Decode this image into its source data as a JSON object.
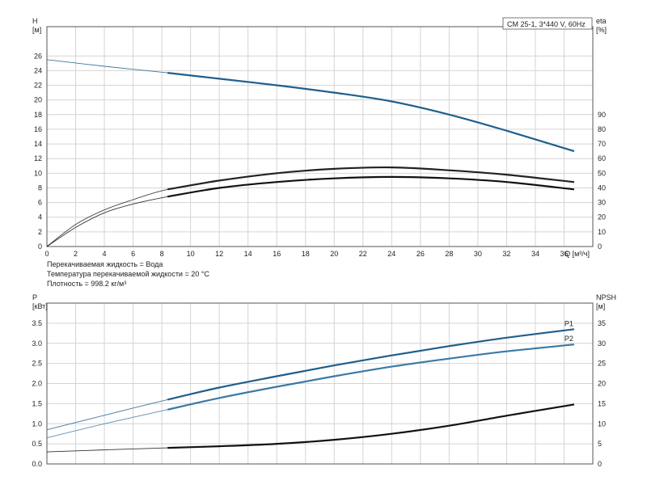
{
  "chart_data": [
    {
      "type": "line",
      "legend_title": "CM 25-1, 3*440 V, 60Hz",
      "x_axis": {
        "label": "Q [м³/ч]",
        "range": [
          0,
          38
        ],
        "ticks": [
          0,
          2,
          4,
          6,
          8,
          10,
          12,
          14,
          16,
          18,
          20,
          22,
          24,
          26,
          28,
          30,
          32,
          34,
          36
        ]
      },
      "y_left": {
        "label_line1": "H",
        "label_line2": "[м]",
        "range": [
          0,
          30
        ],
        "ticks": [
          0,
          2,
          4,
          6,
          8,
          10,
          12,
          14,
          16,
          18,
          20,
          22,
          24,
          26
        ]
      },
      "y_right": {
        "label_line1": "eta",
        "label_line2": "[%]",
        "range": [
          0,
          150
        ],
        "ticks": [
          0,
          10,
          20,
          30,
          40,
          50,
          60,
          70,
          80,
          90
        ]
      },
      "grid": true,
      "series": [
        {
          "axis": "left",
          "color": "#1f5f8b",
          "x": [
            0,
            4,
            8.4,
            12,
            16,
            20,
            24,
            28,
            32,
            36.7
          ],
          "y": [
            25.5,
            24.6,
            23.7,
            22.9,
            22.0,
            21.0,
            19.8,
            18.0,
            15.8,
            13.0
          ]
        },
        {
          "axis": "right",
          "color": "#222222",
          "x": [
            0,
            2,
            4,
            6,
            8.4,
            12,
            16,
            20,
            24,
            28,
            32,
            36.7
          ],
          "y": [
            0,
            15,
            25,
            32,
            39,
            45,
            50,
            53,
            54,
            52,
            49,
            44
          ]
        },
        {
          "axis": "right",
          "color": "#111111",
          "x": [
            0,
            2,
            4,
            6,
            8.4,
            12,
            16,
            20,
            24,
            28,
            32,
            36.7
          ],
          "y": [
            0,
            13,
            23,
            29,
            34,
            40,
            44,
            46.5,
            47.5,
            46.5,
            44,
            39
          ]
        }
      ]
    },
    {
      "type": "line",
      "x_axis": {
        "range": [
          0,
          38
        ],
        "ticks": []
      },
      "y_left": {
        "label_line1": "P",
        "label_line2": "[кВт]",
        "range": [
          0,
          4.0
        ],
        "ticks": [
          "0.0",
          "0.5",
          "1.0",
          "1.5",
          "2.0",
          "2.5",
          "3.0",
          "3.5"
        ]
      },
      "y_right": {
        "label_line1": "NPSH",
        "label_line2": "[м]",
        "range": [
          0,
          40
        ],
        "ticks": [
          0,
          5,
          10,
          15,
          20,
          25,
          30,
          35
        ]
      },
      "grid": true,
      "series": [
        {
          "name": "P1",
          "axis": "left",
          "color": "#1f5f8b",
          "x": [
            0,
            4,
            8.4,
            12,
            16,
            20,
            24,
            28,
            32,
            36.7
          ],
          "y": [
            0.85,
            1.21,
            1.6,
            1.9,
            2.18,
            2.45,
            2.7,
            2.93,
            3.14,
            3.35
          ]
        },
        {
          "name": "P2",
          "axis": "left",
          "color": "#3a7aa6",
          "x": [
            0,
            4,
            8.4,
            12,
            16,
            20,
            24,
            28,
            32,
            36.7
          ],
          "y": [
            0.65,
            1.0,
            1.35,
            1.64,
            1.92,
            2.18,
            2.42,
            2.62,
            2.8,
            2.97
          ]
        },
        {
          "axis": "right",
          "color": "#111111",
          "x": [
            0,
            4,
            8.4,
            12,
            16,
            20,
            24,
            28,
            32,
            36.7
          ],
          "y": [
            3.0,
            3.5,
            4.0,
            4.4,
            5.0,
            6.0,
            7.5,
            9.5,
            12.0,
            14.8
          ]
        }
      ]
    }
  ],
  "fluid_info": [
    "Перекачиваемая жидкость = Вода",
    "Температура перекачиваемой жидкости = 20 °C",
    "Плотность = 998.2 кг/м³"
  ]
}
